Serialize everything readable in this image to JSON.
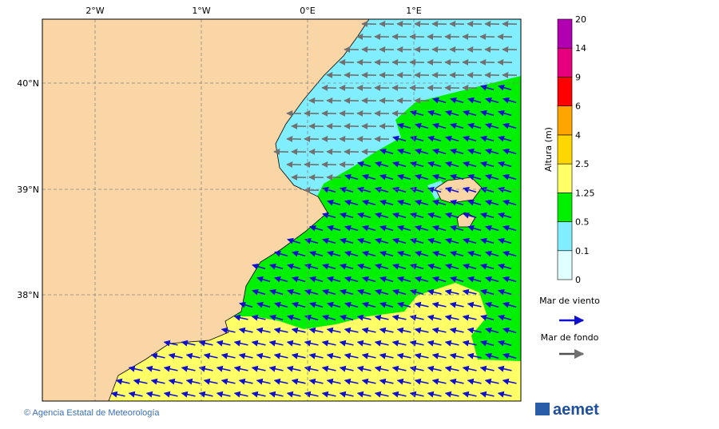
{
  "map": {
    "lon_labels": [
      "2°W",
      "1°W",
      "0°E",
      "1°E"
    ],
    "lat_labels": [
      "40°N",
      "39°N",
      "38°N"
    ],
    "colorbar": {
      "label": "Altura (m)",
      "levels": [
        "0",
        "0.1",
        "0.5",
        "1.25",
        "2.5",
        "4",
        "6",
        "9",
        "14",
        "20"
      ],
      "colors": [
        "#e0ffff",
        "#80eeff",
        "#00f000",
        "#ffff66",
        "#ffd700",
        "#ffa500",
        "#ff0000",
        "#e6007e",
        "#b000b0"
      ]
    },
    "legend": {
      "wind_sea": "Mar de viento",
      "swell": "Mar de fondo"
    }
  },
  "footer": {
    "credit": "© Agencia Estatal de Meteorología",
    "logo": "aemet"
  }
}
